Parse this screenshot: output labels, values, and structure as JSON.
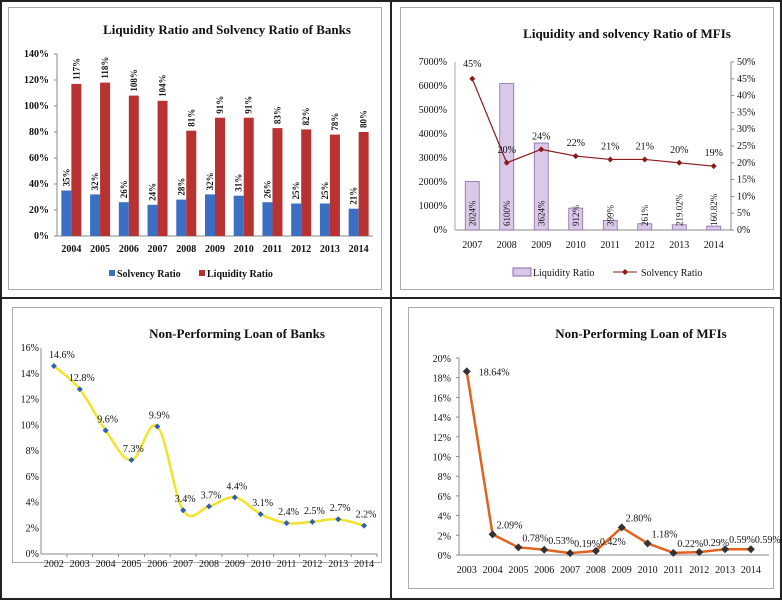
{
  "chart_data": [
    {
      "id": "banks-ratio",
      "type": "bar",
      "title": "Liquidity Ratio and Solvency Ratio of Banks",
      "categories": [
        "2004",
        "2005",
        "2006",
        "2007",
        "2008",
        "2009",
        "2010",
        "2011",
        "2012",
        "2013",
        "2014"
      ],
      "series": [
        {
          "name": "Solvency Ratio",
          "color": "#3a6fc4",
          "values": [
            35,
            32,
            26,
            24,
            28,
            32,
            31,
            26,
            25,
            25,
            21
          ],
          "labels": [
            "35%",
            "32%",
            "26%",
            "24%",
            "28%",
            "32%",
            "31%",
            "26%",
            "25%",
            "25%",
            "21%"
          ]
        },
        {
          "name": "Liquidity Ratio",
          "color": "#b83232",
          "values": [
            117,
            118,
            108,
            104,
            81,
            91,
            91,
            83,
            82,
            78,
            80
          ],
          "labels": [
            "117%",
            "118%",
            "108%",
            "104%",
            "81%",
            "91%",
            "91%",
            "83%",
            "82%",
            "78%",
            "80%"
          ]
        }
      ],
      "ylim": [
        0,
        140
      ],
      "yticks": [
        "0%",
        "20%",
        "40%",
        "60%",
        "80%",
        "100%",
        "120%",
        "140%"
      ],
      "legend": "bottom"
    },
    {
      "id": "mfi-ratio",
      "type": "bar",
      "title": "Liquidity and solvency Ratio of MFIs",
      "categories": [
        "2007",
        "2008",
        "2009",
        "2010",
        "2011",
        "2012",
        "2013",
        "2014"
      ],
      "series": [
        {
          "name": "Liquidity Ratio",
          "kind": "bar",
          "axis": "left",
          "color": "#d9c8e8",
          "values": [
            2024,
            6100,
            3624,
            912,
            399,
            261,
            219.02,
            160.82
          ],
          "labels": [
            "2024%",
            "6100%",
            "3624%",
            "912%",
            "399%",
            "261%",
            "219.02%",
            "160.82%"
          ]
        },
        {
          "name": "Solvency Ratio",
          "kind": "line",
          "axis": "right",
          "color": "#8b1a1a",
          "values": [
            45,
            20,
            24,
            22,
            21,
            21,
            20,
            19
          ],
          "labels": [
            "45%",
            "20%",
            "24%",
            "22%",
            "21%",
            "21%",
            "20%",
            "19%"
          ]
        }
      ],
      "ylim_left": [
        0,
        7000
      ],
      "yticks_left": [
        "0%",
        "1000%",
        "2000%",
        "3000%",
        "4000%",
        "5000%",
        "6000%",
        "7000%"
      ],
      "ylim_right": [
        0,
        50
      ],
      "yticks_right": [
        "0%",
        "5%",
        "10%",
        "15%",
        "20%",
        "25%",
        "30%",
        "35%",
        "40%",
        "45%",
        "50%"
      ],
      "legend": "bottom"
    },
    {
      "id": "banks-npl",
      "type": "line",
      "title": "Non-Performing Loan of Banks",
      "categories": [
        "2002",
        "2003",
        "2004",
        "2005",
        "2006",
        "2007",
        "2008",
        "2009",
        "2010",
        "2011",
        "2012",
        "2013",
        "2014"
      ],
      "series": [
        {
          "name": "NPL",
          "color": "#f2e22a",
          "marker_color": "#2e5fb8",
          "values": [
            14.6,
            12.8,
            9.6,
            7.3,
            9.9,
            3.4,
            3.7,
            4.4,
            3.1,
            2.4,
            2.5,
            2.7,
            2.2
          ],
          "labels": [
            "14.6%",
            "12.8%",
            "9.6%",
            "7.3%",
            "9.9%",
            "3.4%",
            "3.7%",
            "4.4%",
            "3.1%",
            "2.4%",
            "2.5%",
            "2.7%",
            "2.2%"
          ]
        }
      ],
      "ylim": [
        0,
        16
      ],
      "yticks": [
        "0%",
        "2%",
        "4%",
        "6%",
        "8%",
        "10%",
        "12%",
        "14%",
        "16%"
      ]
    },
    {
      "id": "mfi-npl",
      "type": "line",
      "title": "Non-Performing Loan of MFIs",
      "categories": [
        "2003",
        "2004",
        "2005",
        "2006",
        "2007",
        "2008",
        "2009",
        "2010",
        "2011",
        "2012",
        "2013",
        "2014"
      ],
      "series": [
        {
          "name": "NPL",
          "color": "#e0631f",
          "marker_color": "#333333",
          "values": [
            18.64,
            2.09,
            0.78,
            0.53,
            0.19,
            0.42,
            2.8,
            1.18,
            0.22,
            0.29,
            0.59,
            0.59
          ],
          "labels": [
            "18.64%",
            "2.09%",
            "0.78%",
            "0.53%",
            "0.19%",
            "0.42%",
            "2.80%",
            "1.18%",
            "0.22%",
            "0.29%",
            "0.59%",
            "0.59%"
          ]
        }
      ],
      "ylim": [
        0,
        20
      ],
      "yticks": [
        "0%",
        "2%",
        "4%",
        "6%",
        "8%",
        "10%",
        "12%",
        "14%",
        "16%",
        "18%",
        "20%"
      ]
    }
  ]
}
